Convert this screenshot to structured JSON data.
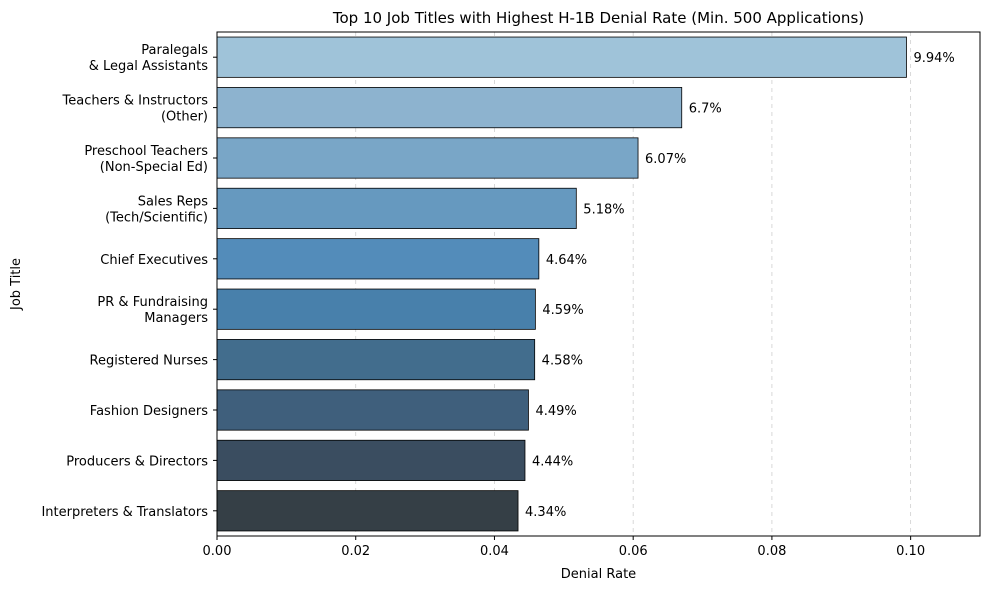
{
  "chart_data": {
    "type": "bar",
    "orientation": "horizontal",
    "title": "Top 10 Job Titles with Highest H-1B Denial Rate (Min. 500 Applications)",
    "xlabel": "Denial Rate",
    "ylabel": "Job Title",
    "xlim": [
      0,
      0.11
    ],
    "xticks": [
      "0.00",
      "0.02",
      "0.04",
      "0.06",
      "0.08",
      "0.10"
    ],
    "xtick_values": [
      0,
      0.02,
      0.04,
      0.06,
      0.08,
      0.1
    ],
    "grid": "x-dashed",
    "categories": [
      [
        "Paralegals",
        "& Legal Assistants"
      ],
      [
        "Teachers & Instructors",
        "(Other)"
      ],
      [
        "Preschool Teachers",
        "(Non-Special Ed)"
      ],
      [
        "Sales Reps",
        "(Tech/Scientific)"
      ],
      [
        "Chief Executives"
      ],
      [
        "PR & Fundraising",
        "Managers"
      ],
      [
        "Registered Nurses"
      ],
      [
        "Fashion Designers"
      ],
      [
        "Producers & Directors"
      ],
      [
        "Interpreters & Translators"
      ]
    ],
    "values": [
      0.0994,
      0.067,
      0.0607,
      0.0518,
      0.0464,
      0.0459,
      0.0458,
      0.0449,
      0.0444,
      0.0434
    ],
    "data_labels": [
      "9.94%",
      "6.7%",
      "6.07%",
      "5.18%",
      "4.64%",
      "4.59%",
      "4.58%",
      "4.49%",
      "4.44%",
      "4.34%"
    ],
    "colors": [
      "#9fc3d9",
      "#8db3cf",
      "#79a6c7",
      "#6699bf",
      "#538cba",
      "#4880ab",
      "#426d8d",
      "#3f5f7c",
      "#3a4d60",
      "#353f46"
    ]
  }
}
